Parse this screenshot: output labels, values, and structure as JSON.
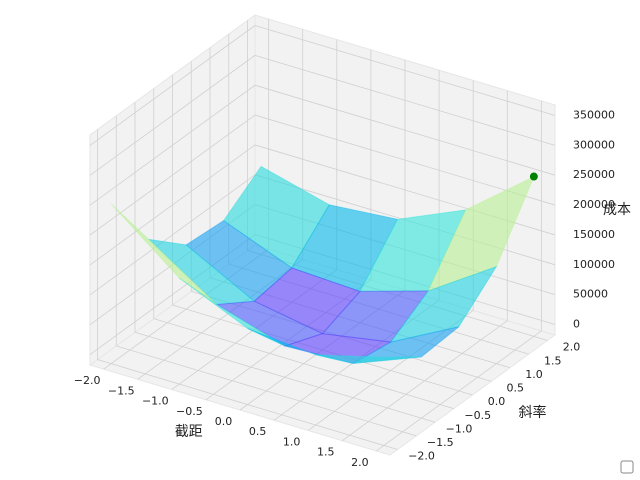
{
  "chart_data": {
    "type": "surface3d",
    "x_label": "截距",
    "y_label": "斜率",
    "z_label": "成本",
    "x": [
      -2,
      -1,
      0,
      1,
      2
    ],
    "y": [
      -2,
      -1,
      0,
      1,
      2
    ],
    "z": [
      [
        250000,
        160000,
        110000,
        100000,
        130000
      ],
      [
        145000,
        70000,
        35000,
        40000,
        85000
      ],
      [
        90000,
        30000,
        10000,
        30000,
        90000
      ],
      [
        85000,
        40000,
        35000,
        70000,
        145000
      ],
      [
        130000,
        100000,
        110000,
        160000,
        250000
      ]
    ],
    "colormap": "rainbow",
    "point": {
      "x": 2,
      "y": 2,
      "z": 250000,
      "color": "green"
    },
    "xlim": [
      -2.2,
      2.2
    ],
    "ylim": [
      -2.2,
      2.2
    ],
    "zlim": [
      -17500,
      367500
    ],
    "xticks": [
      {
        "value": -2,
        "label": "−2.0"
      },
      {
        "value": -1.5,
        "label": "−1.5"
      },
      {
        "value": -1,
        "label": "−1.0"
      },
      {
        "value": -0.5,
        "label": "−0.5"
      },
      {
        "value": 0,
        "label": "0.0"
      },
      {
        "value": 0.5,
        "label": "0.5"
      },
      {
        "value": 1,
        "label": "1.0"
      },
      {
        "value": 1.5,
        "label": "1.5"
      },
      {
        "value": 2,
        "label": "2.0"
      }
    ],
    "yticks": [
      {
        "value": -2,
        "label": "−2.0"
      },
      {
        "value": -1.5,
        "label": "−1.5"
      },
      {
        "value": -1,
        "label": "−1.0"
      },
      {
        "value": -0.5,
        "label": "−0.5"
      },
      {
        "value": 0,
        "label": "0.0"
      },
      {
        "value": 0.5,
        "label": "0.5"
      },
      {
        "value": 1,
        "label": "1.0"
      },
      {
        "value": 1.5,
        "label": "1.5"
      },
      {
        "value": 2,
        "label": "2.0"
      }
    ],
    "zticks": [
      0,
      50000,
      100000,
      150000,
      200000,
      250000,
      300000,
      350000
    ],
    "grid": true
  }
}
